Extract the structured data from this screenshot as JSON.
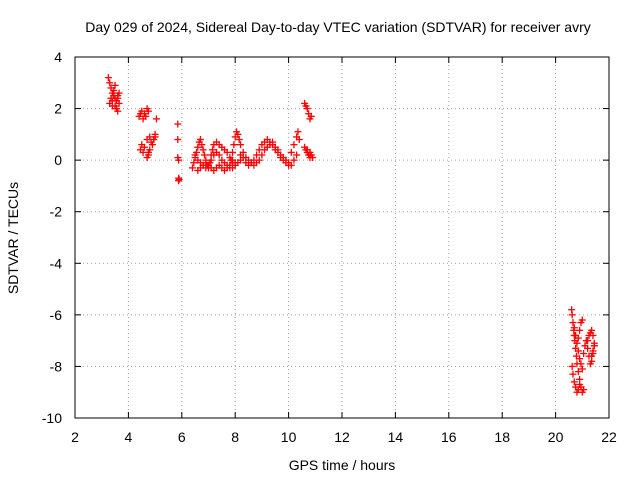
{
  "chart_data": {
    "type": "scatter",
    "title": "Day 029 of 2024, Sidereal Day-to-day VTEC variation (SDTVAR) for receiver avry",
    "xlabel": "GPS time / hours",
    "ylabel": "SDTVAR / TECUs",
    "xlim": [
      2,
      22
    ],
    "ylim": [
      -10,
      4
    ],
    "xticks": [
      "2",
      "4",
      "6",
      "8",
      "10",
      "12",
      "14",
      "16",
      "18",
      "20",
      "22"
    ],
    "yticks": [
      "4",
      "2",
      "0",
      "-2",
      "-4",
      "-6",
      "-8",
      "-10"
    ],
    "grid": true,
    "marker": "plus",
    "color": "#ff0000",
    "series": [
      {
        "name": "SDTVAR",
        "x": [
          3.25,
          3.3,
          3.35,
          3.4,
          3.45,
          3.5,
          3.55,
          3.6,
          3.65,
          3.3,
          3.35,
          3.4,
          3.45,
          3.5,
          3.55,
          3.6,
          3.65,
          3.4,
          3.5,
          3.6,
          4.4,
          4.45,
          4.5,
          4.55,
          4.6,
          4.65,
          4.7,
          4.75,
          4.5,
          4.6,
          4.7,
          4.8,
          4.85,
          4.9,
          4.95,
          5.0,
          4.45,
          4.55,
          4.75,
          4.8,
          5.0,
          5.05,
          4.7,
          4.75,
          5.85,
          5.85,
          5.85,
          5.88,
          5.88,
          5.88,
          5.9,
          6.4,
          6.45,
          6.5,
          6.55,
          6.6,
          6.65,
          6.7,
          6.75,
          6.8,
          6.85,
          6.9,
          6.95,
          7.0,
          7.05,
          7.1,
          7.15,
          7.2,
          7.3,
          7.4,
          7.5,
          7.6,
          7.7,
          7.8,
          7.9,
          8.0,
          6.5,
          6.6,
          6.7,
          6.8,
          6.9,
          7.0,
          7.1,
          7.2,
          7.3,
          7.4,
          7.5,
          7.6,
          7.7,
          7.8,
          7.9,
          8.0,
          8.1,
          8.2,
          6.6,
          6.7,
          6.8,
          6.9,
          7.0,
          7.1,
          7.2,
          7.3,
          7.4,
          7.5,
          7.6,
          7.7,
          7.8,
          7.9,
          7.85,
          7.9,
          7.95,
          8.0,
          8.05,
          8.1,
          8.15,
          8.2,
          8.3,
          8.4,
          8.5,
          8.6,
          8.7,
          8.8,
          8.9,
          9.0,
          9.1,
          9.2,
          9.3,
          9.4,
          9.5,
          9.6,
          9.7,
          9.8,
          9.9,
          10.0,
          8.2,
          8.3,
          8.4,
          8.5,
          8.6,
          8.7,
          8.8,
          8.9,
          9.0,
          9.1,
          9.2,
          9.3,
          9.4,
          9.5,
          9.6,
          9.7,
          9.8,
          9.9,
          10.0,
          10.1,
          10.2,
          10.3,
          10.1,
          10.2,
          10.3,
          10.35,
          10.4,
          10.6,
          10.65,
          10.7,
          10.75,
          10.8,
          10.85,
          10.65,
          10.7,
          10.75,
          10.8,
          10.6,
          10.7,
          10.8,
          10.85,
          10.9,
          20.6,
          20.62,
          20.65,
          20.68,
          20.7,
          20.72,
          20.75,
          20.78,
          20.8,
          20.85,
          20.9,
          20.62,
          20.65,
          20.7,
          20.75,
          20.8,
          20.85,
          20.9,
          20.95,
          21.0,
          21.05,
          20.7,
          20.75,
          20.8,
          20.85,
          20.9,
          20.95,
          21.0,
          20.85,
          20.9,
          20.95,
          21.0,
          21.05,
          21.1,
          21.15,
          21.2,
          21.25,
          21.3,
          21.35,
          21.4,
          21.45,
          21.2,
          21.25,
          21.3,
          21.35,
          21.4,
          21.45,
          21.35,
          21.4,
          21.45
        ],
        "y": [
          3.2,
          3.0,
          2.8,
          2.6,
          2.5,
          2.4,
          2.3,
          2.5,
          2.2,
          2.2,
          2.4,
          2.1,
          2.7,
          2.9,
          2.0,
          1.9,
          2.6,
          2.3,
          2.1,
          2.4,
          1.7,
          1.8,
          1.9,
          1.6,
          1.8,
          1.7,
          2.0,
          1.9,
          0.6,
          0.5,
          0.8,
          0.9,
          0.7,
          0.6,
          0.8,
          0.9,
          0.4,
          0.3,
          0.2,
          0.4,
          1.0,
          1.6,
          0.1,
          0.3,
          1.4,
          0.8,
          0.1,
          -0.7,
          -0.8,
          0.0,
          -0.75,
          -0.3,
          -0.1,
          0.1,
          0.3,
          0.5,
          0.7,
          0.8,
          0.6,
          0.4,
          0.2,
          0.0,
          -0.2,
          -0.3,
          -0.1,
          0.2,
          0.4,
          0.6,
          0.7,
          0.6,
          0.5,
          0.4,
          0.3,
          0.1,
          0.0,
          -0.1,
          0.2,
          0.0,
          -0.1,
          -0.2,
          -0.3,
          -0.2,
          0.0,
          0.2,
          0.3,
          0.2,
          0.0,
          -0.1,
          -0.2,
          -0.3,
          -0.3,
          -0.2,
          -0.1,
          0.0,
          -0.4,
          -0.3,
          -0.2,
          -0.1,
          -0.2,
          -0.3,
          -0.4,
          -0.3,
          -0.2,
          -0.3,
          -0.4,
          -0.3,
          -0.2,
          -0.1,
          0.0,
          0.3,
          0.6,
          0.9,
          1.1,
          1.0,
          0.8,
          0.6,
          0.3,
          0.1,
          0.0,
          -0.1,
          -0.2,
          -0.1,
          0.0,
          0.2,
          0.4,
          0.5,
          0.6,
          0.7,
          0.5,
          0.4,
          0.2,
          0.1,
          0.0,
          -0.1,
          0.2,
          0.1,
          -0.1,
          -0.2,
          -0.1,
          0.0,
          0.2,
          0.4,
          0.6,
          0.7,
          0.8,
          0.7,
          0.6,
          0.4,
          0.3,
          0.1,
          0.0,
          -0.1,
          -0.2,
          -0.2,
          0.0,
          0.2,
          0.3,
          0.6,
          0.9,
          1.1,
          0.8,
          2.2,
          2.1,
          2.0,
          1.8,
          1.6,
          1.7,
          0.4,
          0.3,
          0.2,
          0.1,
          0.5,
          0.4,
          0.3,
          0.2,
          0.1,
          -5.8,
          -6.0,
          -6.3,
          -6.6,
          -6.8,
          -7.0,
          -7.3,
          -7.6,
          -7.9,
          -8.2,
          -8.5,
          -8.0,
          -8.3,
          -8.6,
          -8.8,
          -9.0,
          -8.9,
          -8.7,
          -8.8,
          -9.0,
          -8.9,
          -6.5,
          -6.8,
          -7.1,
          -7.4,
          -7.7,
          -7.9,
          -8.1,
          -6.9,
          -6.6,
          -6.3,
          -6.2,
          -7.5,
          -7.2,
          -7.0,
          -7.3,
          -7.6,
          -7.9,
          -7.8,
          -7.5,
          -7.2,
          -7.0,
          -6.8,
          -6.7,
          -6.6,
          -6.8,
          -7.1,
          -7.6,
          -7.4,
          -7.2
        ]
      }
    ]
  }
}
